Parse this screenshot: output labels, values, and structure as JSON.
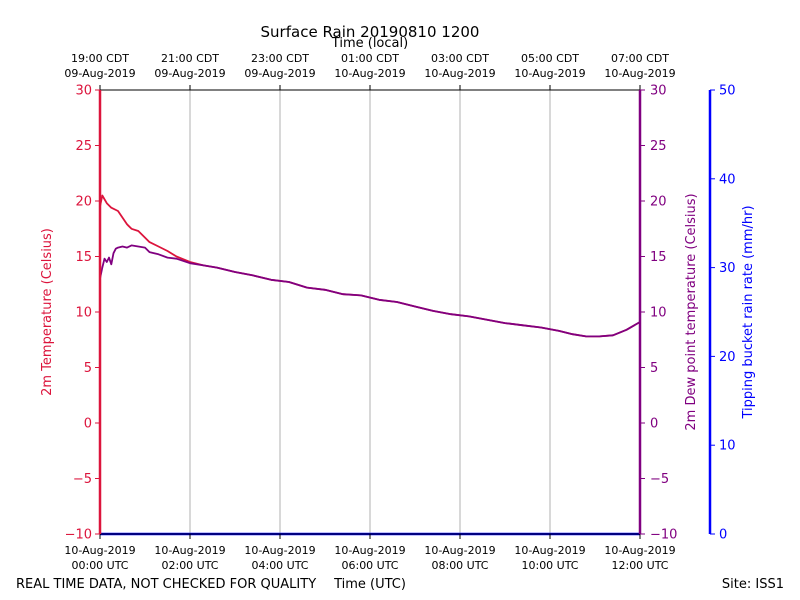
{
  "chart_data": {
    "type": "line",
    "title": "Surface Rain 20190810 1200",
    "top_axis_label": "Time (local)",
    "xlabel": "Time (UTC)",
    "ylabel_left": "2m Temperature (Celsius)",
    "ylabel_right_inner": "2m Dew point temperature (Celsius)",
    "ylabel_right_outer": "Tipping bucket rain rate (mm/hr)",
    "footer_left": "REAL TIME DATA, NOT CHECKED FOR QUALITY",
    "footer_right": "Site: ISS1",
    "grid": "vertical",
    "xlim": [
      0,
      12
    ],
    "ylim_temp": [
      -10,
      30
    ],
    "ylim_dew": [
      -10,
      30
    ],
    "ylim_rain": [
      0,
      50
    ],
    "bottom_ticks": [
      {
        "x": 0,
        "line1": "10-Aug-2019",
        "line2": "00:00 UTC"
      },
      {
        "x": 2,
        "line1": "10-Aug-2019",
        "line2": "02:00 UTC"
      },
      {
        "x": 4,
        "line1": "10-Aug-2019",
        "line2": "04:00 UTC"
      },
      {
        "x": 6,
        "line1": "10-Aug-2019",
        "line2": "06:00 UTC"
      },
      {
        "x": 8,
        "line1": "10-Aug-2019",
        "line2": "08:00 UTC"
      },
      {
        "x": 10,
        "line1": "10-Aug-2019",
        "line2": "10:00 UTC"
      },
      {
        "x": 12,
        "line1": "10-Aug-2019",
        "line2": "12:00 UTC"
      }
    ],
    "top_ticks": [
      {
        "x": 0,
        "line1": "19:00 CDT",
        "line2": "09-Aug-2019"
      },
      {
        "x": 2,
        "line1": "21:00 CDT",
        "line2": "09-Aug-2019"
      },
      {
        "x": 4,
        "line1": "23:00 CDT",
        "line2": "09-Aug-2019"
      },
      {
        "x": 6,
        "line1": "01:00 CDT",
        "line2": "10-Aug-2019"
      },
      {
        "x": 8,
        "line1": "03:00 CDT",
        "line2": "10-Aug-2019"
      },
      {
        "x": 10,
        "line1": "05:00 CDT",
        "line2": "10-Aug-2019"
      },
      {
        "x": 12,
        "line1": "07:00 CDT",
        "line2": "10-Aug-2019"
      }
    ],
    "y_ticks_temp": [
      -10,
      -5,
      0,
      5,
      10,
      15,
      20,
      25,
      30
    ],
    "y_ticks_rain": [
      0,
      10,
      20,
      30,
      40,
      50
    ],
    "colors": {
      "temperature": "#dc143c",
      "dewpoint": "#800080",
      "rain": "#0000ff",
      "grid": "#b0b0b0"
    },
    "series": [
      {
        "key": "temperature",
        "x": [
          0,
          0.05,
          0.15,
          0.25,
          0.4,
          0.5,
          0.6,
          0.7,
          0.85,
          1.0,
          1.1,
          1.3,
          1.5,
          1.7,
          2.0,
          2.3,
          2.6,
          3.0,
          3.4,
          3.8,
          4.2,
          4.6,
          5.0,
          5.4,
          5.8,
          6.2,
          6.6,
          7.0,
          7.4,
          7.8,
          8.2,
          8.6,
          9.0,
          9.4,
          9.8,
          10.2,
          10.5,
          10.8,
          11.1,
          11.4,
          11.7,
          12.0
        ],
        "values": [
          19.5,
          20.5,
          19.8,
          19.4,
          19.1,
          18.5,
          17.9,
          17.5,
          17.3,
          16.7,
          16.3,
          15.9,
          15.5,
          15.0,
          14.5,
          14.2,
          14.0,
          13.6,
          13.3,
          12.9,
          12.7,
          12.2,
          12.0,
          11.6,
          11.5,
          11.1,
          10.9,
          10.5,
          10.1,
          9.8,
          9.6,
          9.3,
          9.0,
          8.8,
          8.6,
          8.3,
          8.0,
          7.8,
          7.8,
          7.9,
          8.4,
          9.1
        ]
      },
      {
        "key": "dewpoint",
        "x": [
          0,
          0.05,
          0.1,
          0.15,
          0.2,
          0.25,
          0.3,
          0.35,
          0.4,
          0.5,
          0.6,
          0.7,
          0.85,
          1.0,
          1.1,
          1.3,
          1.5,
          1.7,
          2.0,
          2.3,
          2.6,
          3.0,
          3.4,
          3.8,
          4.2,
          4.6,
          5.0,
          5.4,
          5.8,
          6.2,
          6.6,
          7.0,
          7.4,
          7.8,
          8.2,
          8.6,
          9.0,
          9.4,
          9.8,
          10.2,
          10.5,
          10.8,
          11.1,
          11.4,
          11.7,
          12.0
        ],
        "values": [
          13.0,
          14.0,
          14.8,
          14.5,
          14.9,
          14.3,
          15.3,
          15.7,
          15.8,
          15.9,
          15.8,
          16.0,
          15.9,
          15.8,
          15.4,
          15.2,
          14.9,
          14.8,
          14.4,
          14.2,
          14.0,
          13.6,
          13.3,
          12.9,
          12.7,
          12.2,
          12.0,
          11.6,
          11.5,
          11.1,
          10.9,
          10.5,
          10.1,
          9.8,
          9.6,
          9.3,
          9.0,
          8.8,
          8.6,
          8.3,
          8.0,
          7.8,
          7.8,
          7.9,
          8.4,
          9.1
        ]
      },
      {
        "key": "rain",
        "x": [
          0,
          12
        ],
        "values": [
          0,
          0
        ]
      }
    ]
  }
}
